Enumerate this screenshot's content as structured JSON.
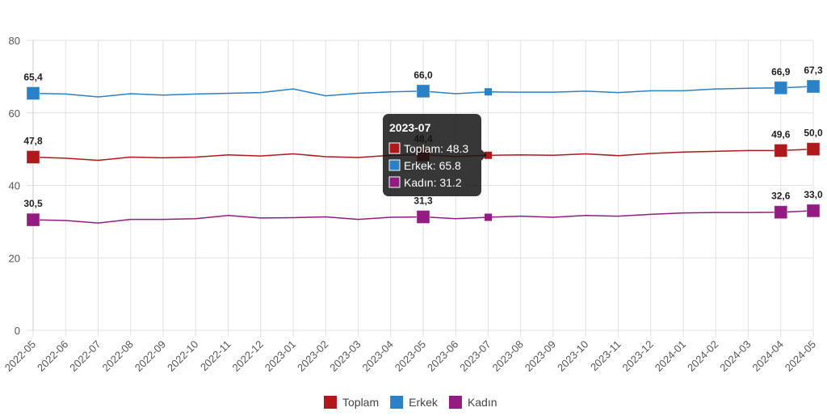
{
  "chart_data": {
    "type": "line",
    "categories": [
      "2022-05",
      "2022-06",
      "2022-07",
      "2022-08",
      "2022-09",
      "2022-10",
      "2022-11",
      "2022-12",
      "2023-01",
      "2023-02",
      "2023-03",
      "2023-04",
      "2023-05",
      "2023-06",
      "2023-07",
      "2023-08",
      "2023-09",
      "2023-10",
      "2023-11",
      "2023-12",
      "2024-01",
      "2024-02",
      "2024-03",
      "2024-04",
      "2024-05"
    ],
    "ylim": [
      0,
      80
    ],
    "yticks": [
      0,
      20,
      40,
      60,
      80
    ],
    "grid": true,
    "legend_position": "bottom",
    "series": [
      {
        "name": "Toplam",
        "color": "#b0191c",
        "values": [
          47.8,
          47.5,
          46.9,
          47.8,
          47.6,
          47.8,
          48.4,
          48.1,
          48.7,
          47.9,
          47.7,
          48.3,
          48.4,
          48.0,
          48.3,
          48.4,
          48.3,
          48.7,
          48.2,
          48.8,
          49.2,
          49.4,
          49.6,
          49.6,
          50.0
        ]
      },
      {
        "name": "Erkek",
        "color": "#2a81c8",
        "values": [
          65.4,
          65.2,
          64.4,
          65.3,
          64.9,
          65.2,
          65.4,
          65.6,
          66.6,
          64.7,
          65.4,
          65.8,
          66.0,
          65.3,
          65.8,
          65.7,
          65.7,
          66.0,
          65.6,
          66.1,
          66.1,
          66.6,
          66.8,
          66.9,
          67.3
        ]
      },
      {
        "name": "Kadın",
        "color": "#931c83",
        "values": [
          30.5,
          30.3,
          29.6,
          30.6,
          30.6,
          30.8,
          31.7,
          31.0,
          31.1,
          31.3,
          30.6,
          31.2,
          31.3,
          30.8,
          31.2,
          31.5,
          31.2,
          31.7,
          31.5,
          32.0,
          32.4,
          32.5,
          32.5,
          32.6,
          33.0
        ]
      }
    ],
    "data_labels": [
      {
        "index": 0,
        "labels": [
          "47,8",
          "65,4",
          "30,5"
        ]
      },
      {
        "index": 12,
        "labels": [
          "48,4",
          "66,0",
          "31,3"
        ]
      },
      {
        "index": 23,
        "labels": [
          "49,6",
          "66,9",
          "32,6"
        ]
      },
      {
        "index": 24,
        "labels": [
          "50,0",
          "67,3",
          "33,0"
        ]
      }
    ],
    "tooltip": {
      "index": 14,
      "title": "2023-07",
      "lines": [
        "Toplam: 48.3",
        "Erkek: 65.8",
        "Kadın: 31.2"
      ]
    }
  }
}
